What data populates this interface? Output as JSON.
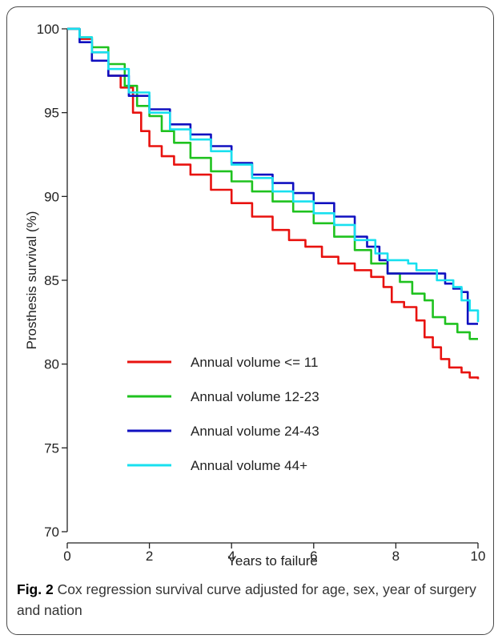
{
  "caption": {
    "label": "Fig. 2",
    "text": " Cox regression survival curve adjusted for age, sex, year of surgery and nation"
  },
  "chart_data": {
    "type": "line",
    "title": "",
    "xlabel": "Years to failure",
    "ylabel": "Prosthesis survival (%)",
    "xlim": [
      0,
      10
    ],
    "ylim": [
      70,
      100
    ],
    "x_ticks": [
      0,
      2,
      4,
      6,
      8,
      10
    ],
    "y_ticks": [
      70,
      75,
      80,
      85,
      90,
      95,
      100
    ],
    "grid": false,
    "legend_position": "lower-left",
    "series": [
      {
        "name": "Annual volume <= 11",
        "color": "#e8120f",
        "points": [
          [
            0,
            100
          ],
          [
            0.3,
            99.4
          ],
          [
            0.6,
            98.6
          ],
          [
            1.0,
            97.2
          ],
          [
            1.3,
            96.5
          ],
          [
            1.6,
            95.0
          ],
          [
            1.8,
            93.9
          ],
          [
            2.0,
            93.0
          ],
          [
            2.3,
            92.4
          ],
          [
            2.6,
            91.9
          ],
          [
            3.0,
            91.3
          ],
          [
            3.5,
            90.4
          ],
          [
            4.0,
            89.6
          ],
          [
            4.5,
            88.8
          ],
          [
            5.0,
            88.0
          ],
          [
            5.4,
            87.4
          ],
          [
            5.8,
            87.0
          ],
          [
            6.2,
            86.4
          ],
          [
            6.6,
            86.0
          ],
          [
            7.0,
            85.6
          ],
          [
            7.4,
            85.2
          ],
          [
            7.7,
            84.6
          ],
          [
            7.9,
            83.7
          ],
          [
            8.2,
            83.4
          ],
          [
            8.5,
            82.6
          ],
          [
            8.7,
            81.6
          ],
          [
            8.9,
            81.0
          ],
          [
            9.1,
            80.3
          ],
          [
            9.3,
            79.8
          ],
          [
            9.6,
            79.5
          ],
          [
            9.8,
            79.2
          ],
          [
            10.0,
            79.1
          ]
        ]
      },
      {
        "name": "Annual volume 12-23",
        "color": "#1fc21f",
        "points": [
          [
            0,
            100
          ],
          [
            0.3,
            99.5
          ],
          [
            0.6,
            98.9
          ],
          [
            1.0,
            97.9
          ],
          [
            1.4,
            96.6
          ],
          [
            1.7,
            95.4
          ],
          [
            2.0,
            94.8
          ],
          [
            2.3,
            93.9
          ],
          [
            2.6,
            93.2
          ],
          [
            3.0,
            92.3
          ],
          [
            3.5,
            91.5
          ],
          [
            4.0,
            90.9
          ],
          [
            4.5,
            90.3
          ],
          [
            5.0,
            89.7
          ],
          [
            5.5,
            89.1
          ],
          [
            6.0,
            88.4
          ],
          [
            6.5,
            87.6
          ],
          [
            7.0,
            86.8
          ],
          [
            7.4,
            86.0
          ],
          [
            7.8,
            85.4
          ],
          [
            8.1,
            84.9
          ],
          [
            8.4,
            84.2
          ],
          [
            8.7,
            83.8
          ],
          [
            8.9,
            82.8
          ],
          [
            9.2,
            82.4
          ],
          [
            9.5,
            81.9
          ],
          [
            9.8,
            81.5
          ],
          [
            10.0,
            81.5
          ]
        ]
      },
      {
        "name": "Annual volume 24-43",
        "color": "#1010c0",
        "points": [
          [
            0,
            100
          ],
          [
            0.3,
            99.2
          ],
          [
            0.6,
            98.1
          ],
          [
            1.0,
            97.2
          ],
          [
            1.5,
            96.0
          ],
          [
            2.0,
            95.2
          ],
          [
            2.5,
            94.3
          ],
          [
            3.0,
            93.7
          ],
          [
            3.5,
            93.0
          ],
          [
            4.0,
            92.0
          ],
          [
            4.5,
            91.3
          ],
          [
            5.0,
            90.8
          ],
          [
            5.5,
            90.2
          ],
          [
            6.0,
            89.6
          ],
          [
            6.5,
            88.8
          ],
          [
            7.0,
            87.6
          ],
          [
            7.3,
            87.0
          ],
          [
            7.6,
            86.2
          ],
          [
            7.8,
            85.4
          ],
          [
            8.0,
            85.4
          ],
          [
            8.5,
            85.4
          ],
          [
            9.0,
            85.4
          ],
          [
            9.2,
            84.8
          ],
          [
            9.4,
            84.5
          ],
          [
            9.6,
            84.3
          ],
          [
            9.75,
            82.4
          ],
          [
            10.0,
            82.4
          ]
        ]
      },
      {
        "name": "Annual volume 44+",
        "color": "#18e0ef",
        "points": [
          [
            0,
            100
          ],
          [
            0.3,
            99.5
          ],
          [
            0.6,
            98.6
          ],
          [
            1.0,
            97.6
          ],
          [
            1.5,
            96.2
          ],
          [
            2.0,
            95.0
          ],
          [
            2.5,
            94.0
          ],
          [
            3.0,
            93.4
          ],
          [
            3.5,
            92.7
          ],
          [
            4.0,
            91.9
          ],
          [
            4.5,
            91.1
          ],
          [
            5.0,
            90.3
          ],
          [
            5.5,
            89.7
          ],
          [
            6.0,
            89.0
          ],
          [
            6.5,
            88.3
          ],
          [
            7.0,
            87.4
          ],
          [
            7.5,
            86.6
          ],
          [
            7.8,
            86.2
          ],
          [
            8.3,
            86.0
          ],
          [
            8.5,
            85.6
          ],
          [
            9.0,
            85.0
          ],
          [
            9.4,
            84.6
          ],
          [
            9.6,
            83.8
          ],
          [
            9.8,
            83.2
          ],
          [
            10.0,
            82.5
          ]
        ]
      }
    ]
  }
}
